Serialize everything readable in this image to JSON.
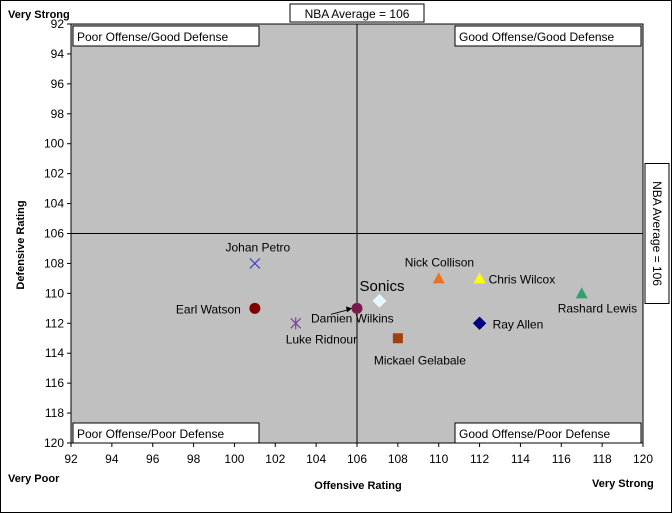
{
  "chart_data": {
    "type": "scatter",
    "title": "",
    "xlabel": "Offensive Rating",
    "ylabel": "Defensive Rating",
    "xlim": [
      92,
      120
    ],
    "ylim": [
      92,
      120
    ],
    "y_axis_inverted": true,
    "x_ticks": [
      92,
      94,
      96,
      98,
      100,
      102,
      104,
      106,
      108,
      110,
      112,
      114,
      116,
      118,
      120
    ],
    "y_ticks": [
      92,
      94,
      96,
      98,
      100,
      102,
      104,
      106,
      108,
      110,
      112,
      114,
      116,
      118,
      120
    ],
    "grid": false,
    "plot_background": "#c0c0c0",
    "x_axis_ends": {
      "low": "Very Poor",
      "high": "Very Strong"
    },
    "y_axis_ends": {
      "top": "Very Strong"
    },
    "reference_lines": [
      {
        "axis": "x",
        "value": 106,
        "label": "NBA Average = 106"
      },
      {
        "axis": "y",
        "value": 106,
        "label": "NBA Average = 106"
      }
    ],
    "quadrant_labels": {
      "top_left": "Poor Offense/Good Defense",
      "top_right": "Good Offense/Good Defense",
      "bottom_left": "Poor Offense/Poor Defense",
      "bottom_right": "Good Offense/Poor Defense"
    },
    "points": [
      {
        "name": "Johan Petro",
        "x": 101,
        "y": 108,
        "marker": "x",
        "color": "#4040d0"
      },
      {
        "name": "Earl Watson",
        "x": 101,
        "y": 111,
        "marker": "circle",
        "color": "#800000"
      },
      {
        "name": "Luke Ridnour",
        "x": 103,
        "y": 112,
        "marker": "star",
        "color": "#7f3f98"
      },
      {
        "name": "Damien Wilkins",
        "x": 106,
        "y": 111,
        "marker": "circle",
        "color": "#7a1a4a"
      },
      {
        "name": "Sonics",
        "x": 107.1,
        "y": 110.5,
        "marker": "diamond",
        "color": "#e0f8ff"
      },
      {
        "name": "Mickael Gelabale",
        "x": 108,
        "y": 113,
        "marker": "square",
        "color": "#a0400f"
      },
      {
        "name": "Nick Collison",
        "x": 110,
        "y": 109,
        "marker": "triangle",
        "color": "#f07020"
      },
      {
        "name": "Chris Wilcox",
        "x": 112,
        "y": 109,
        "marker": "triangle",
        "color": "#ffff00"
      },
      {
        "name": "Ray Allen",
        "x": 112,
        "y": 112,
        "marker": "diamond",
        "color": "#000080"
      },
      {
        "name": "Rashard Lewis",
        "x": 117,
        "y": 110,
        "marker": "triangle",
        "color": "#33a070"
      }
    ]
  }
}
